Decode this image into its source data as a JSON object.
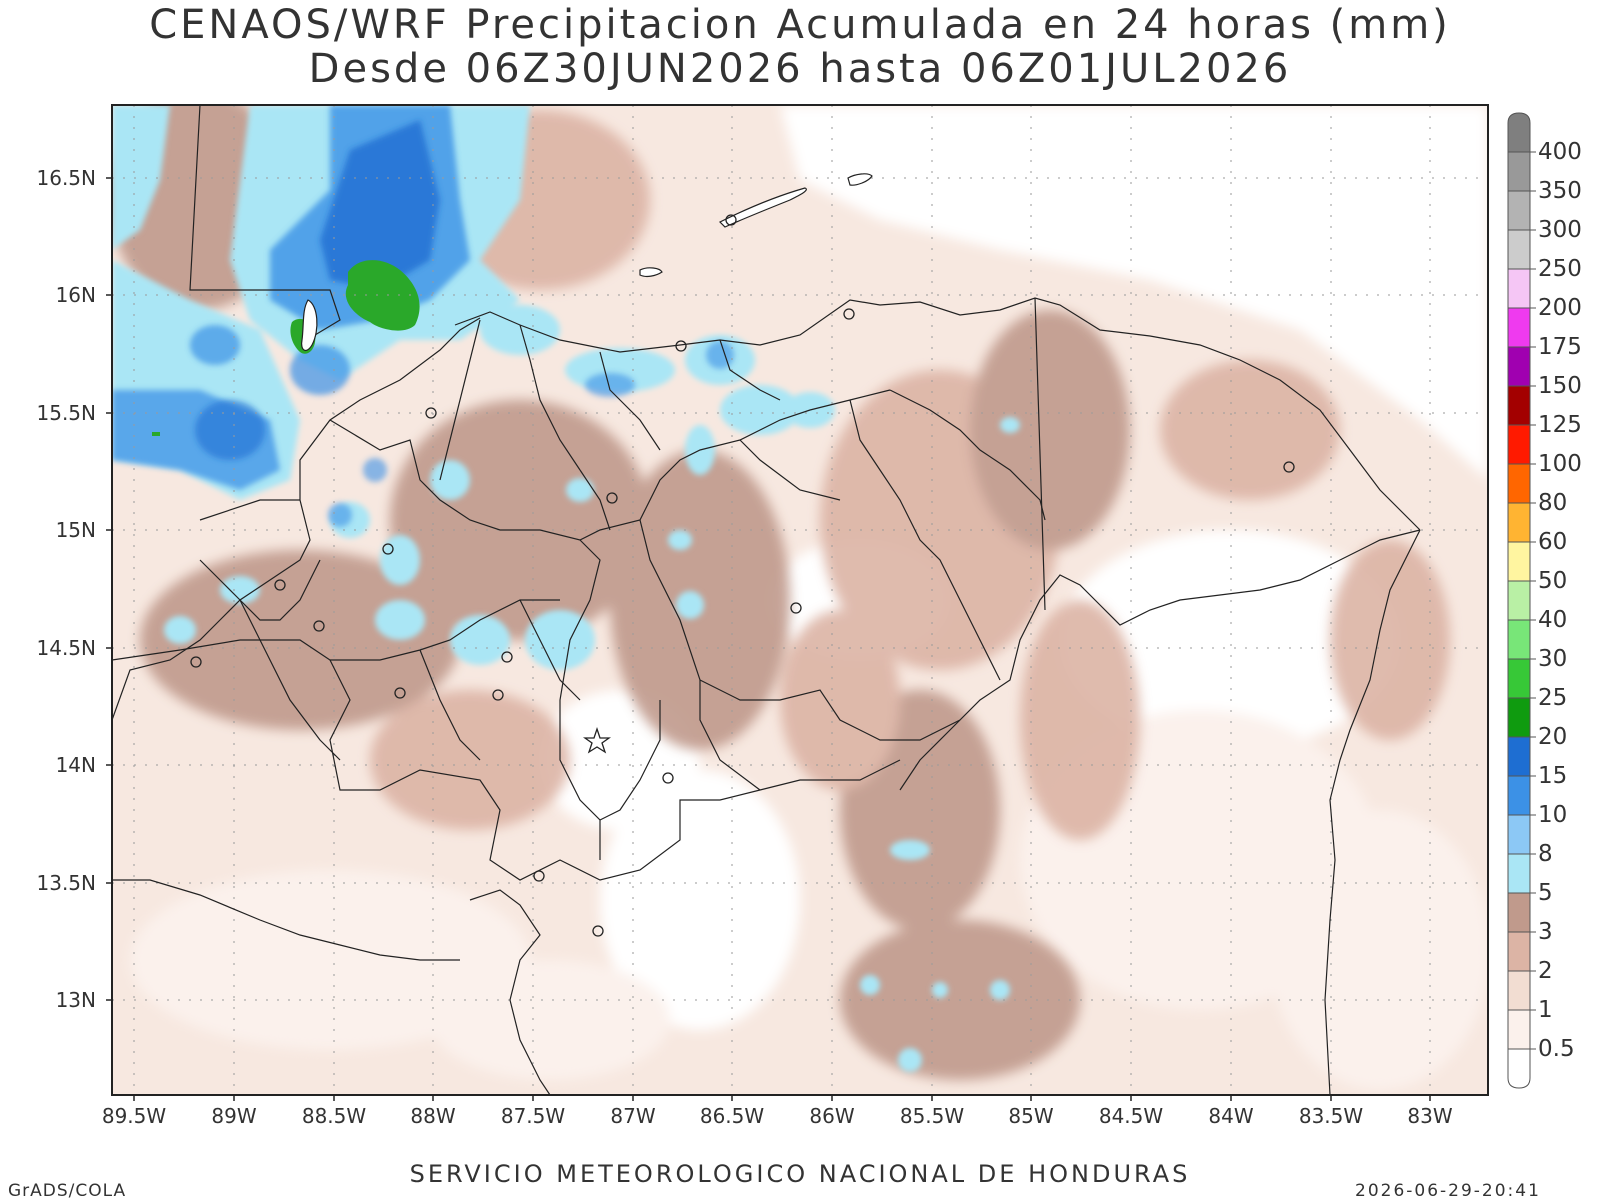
{
  "title": {
    "line1": "CENAOS/WRF Precipitacion Acumulada en 24 horas (mm)",
    "line2": "Desde 06Z30JUN2026 hasta 06Z01JUL2026"
  },
  "map": {
    "lon_labels": [
      "89.5W",
      "89W",
      "88.5W",
      "88W",
      "87.5W",
      "87W",
      "86.5W",
      "86W",
      "85.5W",
      "85W",
      "84.5W",
      "84W",
      "83.5W",
      "83W"
    ],
    "lat_labels": [
      "16.5N",
      "16N",
      "15.5N",
      "15N",
      "14.5N",
      "14N",
      "13.5N",
      "13N"
    ]
  },
  "colorbar": {
    "labels": [
      "400",
      "350",
      "300",
      "250",
      "200",
      "175",
      "150",
      "125",
      "100",
      "80",
      "60",
      "50",
      "40",
      "30",
      "25",
      "20",
      "15",
      "10",
      "8",
      "5",
      "3",
      "2",
      "1",
      "0.5"
    ],
    "colors": [
      "#7f7f7f",
      "#999999",
      "#b3b3b3",
      "#cccccc",
      "#f5c6f5",
      "#ef3aef",
      "#a000b0",
      "#a30000",
      "#ff1a00",
      "#ff6600",
      "#ffb432",
      "#fff5a0",
      "#b9f0a5",
      "#78e678",
      "#37c837",
      "#0f9b0f",
      "#1e6ed2",
      "#3c91e6",
      "#8cc8f5",
      "#aae6f5",
      "#c09a8c",
      "#dcb4a5",
      "#f2ddd2",
      "#fbf1ec",
      "#ffffff"
    ]
  },
  "footer": {
    "center": "SERVICIO METEOROLOGICO NACIONAL DE HONDURAS",
    "left": "GrADS/COLA",
    "right": "2026-06-29-20:41"
  }
}
